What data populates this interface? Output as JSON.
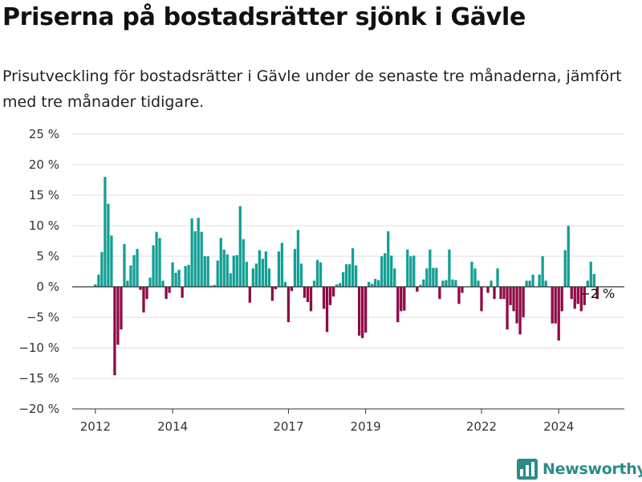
{
  "title": "Priserna på bostadsrätter sjönk i Gävle",
  "subtitle": "Prisutveckling för bostadsrätter i Gävle under de senaste tre månaderna, jämfört med tre månader tidigare.",
  "brand": {
    "name": "Newsworthy",
    "icon": "newsworthy-logo-icon",
    "color": "#2a8c86"
  },
  "chart_data": {
    "type": "bar",
    "colors": {
      "positive": "#139f95",
      "negative": "#8e0a45",
      "gridline": "#dddddd",
      "zeroline": "#333333"
    },
    "y_ticks": [
      {
        "value": 25,
        "label": "25 %"
      },
      {
        "value": 20,
        "label": "20 %"
      },
      {
        "value": 15,
        "label": "15 %"
      },
      {
        "value": 10,
        "label": "10 %"
      },
      {
        "value": 5,
        "label": "5 %"
      },
      {
        "value": 0,
        "label": "0 %"
      },
      {
        "value": -5,
        "label": "−5 %"
      },
      {
        "value": -10,
        "label": "−10 %"
      },
      {
        "value": -15,
        "label": "−15 %"
      },
      {
        "value": -20,
        "label": "−20 %"
      }
    ],
    "ylim": [
      -20,
      25
    ],
    "x_ticks": [
      {
        "value": 2012,
        "label": "2012"
      },
      {
        "value": 2014,
        "label": "2014"
      },
      {
        "value": 2017,
        "label": "2017"
      },
      {
        "value": 2019,
        "label": "2019"
      },
      {
        "value": 2022,
        "label": "2022"
      },
      {
        "value": 2024,
        "label": "2024"
      }
    ],
    "xlim": [
      2011.4,
      2025.7
    ],
    "x_start_year": 2012,
    "x_start_month": 1,
    "gridlines": true,
    "legend": "none",
    "annotation": {
      "label": "−2 %",
      "value": -2
    },
    "values": [
      0.4,
      2,
      5.7,
      18,
      13.6,
      8.4,
      -14.5,
      -9.5,
      -7,
      7,
      1,
      3.5,
      5.2,
      6.2,
      -0.5,
      -4.2,
      -2,
      1.5,
      6.8,
      9,
      8,
      1,
      -2,
      -1,
      4,
      2.3,
      2.8,
      -1.8,
      3.4,
      3.6,
      11.2,
      9.1,
      11.3,
      9,
      5,
      5,
      0.2,
      0.3,
      4.3,
      8,
      6.1,
      5.3,
      2.2,
      5.1,
      5.2,
      13.2,
      7.8,
      4.1,
      -2.6,
      3,
      3.8,
      6,
      4.6,
      5.8,
      3,
      -2.3,
      -0.4,
      5.8,
      7.2,
      0.8,
      -5.8,
      -0.7,
      6.2,
      9.3,
      3.8,
      -1.8,
      -2.5,
      -4,
      1,
      4.4,
      4,
      -3.6,
      -7.4,
      -3,
      -1.6,
      0.4,
      0.6,
      2.4,
      3.7,
      3.7,
      6.3,
      3.5,
      -8,
      -8.4,
      -7.5,
      0.8,
      0.5,
      1.3,
      1.1,
      5,
      5.5,
      9.1,
      5.1,
      3,
      -5.8,
      -4,
      -3.9,
      6.1,
      5,
      5.1,
      -0.8,
      0.3,
      1.2,
      3,
      6.1,
      3.1,
      3.1,
      -2,
      1,
      1.1,
      6.1,
      1.2,
      1.1,
      -2.8,
      -1,
      0,
      0,
      4.1,
      3,
      1,
      -4,
      0,
      -1,
      1,
      -2,
      3,
      -2,
      -2,
      -7,
      -3,
      -4,
      -6,
      -7.8,
      -5,
      1,
      1,
      2,
      0,
      2,
      5,
      1,
      0,
      -6,
      -6,
      -8.8,
      -4,
      6,
      10,
      -2,
      -3.6,
      -2.8,
      -4,
      -3,
      1,
      4.1,
      2.1,
      -2
    ]
  }
}
